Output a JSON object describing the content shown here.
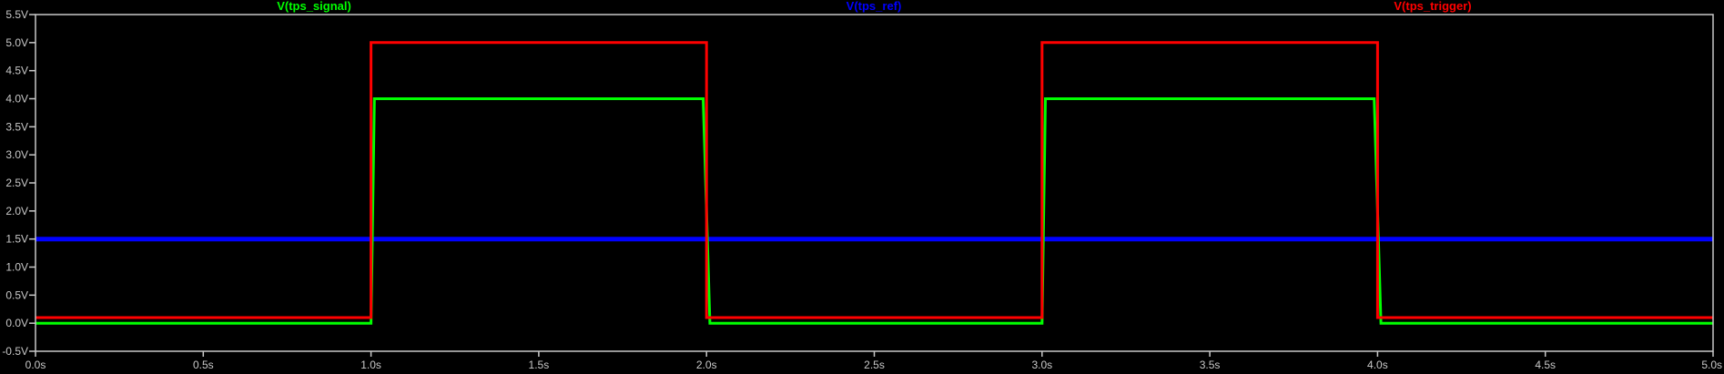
{
  "chart_data": {
    "type": "line",
    "title": "",
    "xlabel": "",
    "ylabel": "",
    "xlim": [
      0,
      5
    ],
    "ylim": [
      -0.5,
      5.5
    ],
    "grid": false,
    "legend_placement": "top",
    "background_color": "#000000",
    "axis_color": "#c8c8c8",
    "x_tick_labels": [
      "0.0s",
      "0.5s",
      "1.0s",
      "1.5s",
      "2.0s",
      "2.5s",
      "3.0s",
      "3.5s",
      "4.0s",
      "4.5s",
      "5.0s"
    ],
    "x_tick_values": [
      0,
      0.5,
      1,
      1.5,
      2,
      2.5,
      3,
      3.5,
      4,
      4.5,
      5
    ],
    "y_tick_labels": [
      "-0.5V",
      "0.0V",
      "0.5V",
      "1.0V",
      "1.5V",
      "2.0V",
      "2.5V",
      "3.0V",
      "3.5V",
      "4.0V",
      "4.5V",
      "5.0V",
      "5.5V"
    ],
    "y_tick_values": [
      -0.5,
      0,
      0.5,
      1,
      1.5,
      2,
      2.5,
      3,
      3.5,
      4,
      4.5,
      5,
      5.5
    ],
    "series": [
      {
        "name": "V(tps_signal)",
        "color": "#00ff00",
        "x": [
          0,
          1.0,
          1.01,
          1.99,
          2.01,
          3.0,
          3.01,
          3.99,
          4.01,
          5.0
        ],
        "y": [
          0,
          0,
          4.0,
          4.0,
          0,
          0,
          4.0,
          4.0,
          0,
          0
        ]
      },
      {
        "name": "V(tps_ref)",
        "color": "#0000ff",
        "x": [
          0,
          5.0
        ],
        "y": [
          1.5,
          1.5
        ]
      },
      {
        "name": "V(tps_trigger)",
        "color": "#ff0000",
        "x": [
          0,
          1.0,
          1.0,
          2.0,
          2.0,
          3.0,
          3.0,
          4.0,
          4.0,
          5.0
        ],
        "y": [
          0.1,
          0.1,
          5.0,
          5.0,
          0.1,
          0.1,
          5.0,
          5.0,
          0.1,
          0.1
        ]
      }
    ]
  }
}
